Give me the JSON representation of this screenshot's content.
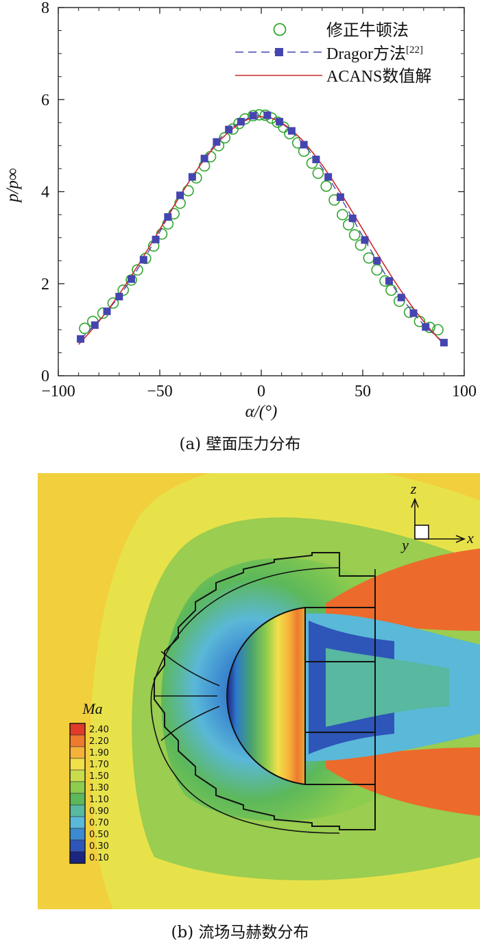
{
  "chart_data": [
    {
      "type": "line",
      "caption": "(a) 壁面压力分布",
      "xlabel": "α/(°)",
      "ylabel": "p/p∞",
      "xlim": [
        -100,
        100
      ],
      "ylim": [
        0,
        8
      ],
      "x_ticks": [
        -100,
        -50,
        0,
        50,
        100
      ],
      "y_ticks": [
        0,
        2,
        4,
        6,
        8
      ],
      "x_tick_labels": [
        "−100",
        "−50",
        "0",
        "50",
        "100"
      ],
      "y_tick_labels": [
        "0",
        "2",
        "4",
        "6",
        "8"
      ],
      "grid": false,
      "legend_position": "top-right",
      "series": [
        {
          "name": "修正牛顿法",
          "style": "open-circle",
          "color": "#2ea52e",
          "x": [
            -87,
            -83,
            -78,
            -73,
            -68,
            -64,
            -61,
            -57,
            -53,
            -49,
            -46,
            -43,
            -40,
            -36,
            -32,
            -28,
            -25,
            -21,
            -18,
            -14,
            -11,
            -8,
            -4,
            -1,
            2,
            5,
            8,
            11,
            14,
            18,
            21,
            25,
            28,
            32,
            36,
            40,
            43,
            46,
            49,
            53,
            57,
            61,
            64,
            68,
            73,
            78,
            83,
            87
          ],
          "y": [
            1.03,
            1.18,
            1.36,
            1.58,
            1.86,
            2.08,
            2.3,
            2.55,
            2.82,
            3.08,
            3.3,
            3.52,
            3.75,
            4.02,
            4.3,
            4.56,
            4.76,
            5.0,
            5.17,
            5.36,
            5.48,
            5.58,
            5.65,
            5.67,
            5.66,
            5.6,
            5.51,
            5.4,
            5.26,
            5.06,
            4.88,
            4.62,
            4.4,
            4.12,
            3.82,
            3.5,
            3.28,
            3.06,
            2.84,
            2.56,
            2.3,
            2.06,
            1.86,
            1.62,
            1.38,
            1.18,
            1.05,
            1.0
          ]
        },
        {
          "name": "Dragor方法",
          "name_superscript": "[22]",
          "style": "dashed-square",
          "color": "#4545b0",
          "x": [
            -89,
            -82,
            -76,
            -70,
            -64,
            -58,
            -52,
            -46,
            -40,
            -34,
            -28,
            -22,
            -16,
            -10,
            -4,
            3,
            9,
            15,
            21,
            27,
            33,
            39,
            45,
            51,
            57,
            63,
            69,
            75,
            81,
            90
          ],
          "y": [
            0.8,
            1.1,
            1.4,
            1.72,
            2.1,
            2.52,
            2.96,
            3.45,
            3.92,
            4.32,
            4.72,
            5.08,
            5.35,
            5.52,
            5.65,
            5.66,
            5.52,
            5.32,
            5.02,
            4.7,
            4.32,
            3.88,
            3.42,
            2.95,
            2.5,
            2.06,
            1.7,
            1.36,
            1.06,
            0.72
          ]
        },
        {
          "name": "ACANS数值解",
          "style": "solid",
          "color": "#cc2a2a",
          "x": [
            -90,
            -85,
            -80,
            -75,
            -70,
            -65,
            -60,
            -55,
            -50,
            -45,
            -40,
            -35,
            -30,
            -25,
            -20,
            -15,
            -10,
            -5,
            0,
            5,
            10,
            15,
            20,
            25,
            30,
            35,
            40,
            45,
            50,
            55,
            60,
            65,
            70,
            75,
            80,
            85,
            90
          ],
          "y": [
            0.68,
            0.92,
            1.18,
            1.46,
            1.77,
            2.1,
            2.45,
            2.81,
            3.18,
            3.55,
            3.91,
            4.26,
            4.58,
            4.87,
            5.13,
            5.34,
            5.5,
            5.6,
            5.63,
            5.6,
            5.5,
            5.34,
            5.13,
            4.87,
            4.58,
            4.26,
            3.91,
            3.55,
            3.18,
            2.81,
            2.45,
            2.1,
            1.77,
            1.46,
            1.18,
            0.92,
            0.68
          ]
        }
      ]
    },
    {
      "type": "heatmap",
      "caption": "(b) 流场马赫数分布",
      "colorbar_title": "Ma",
      "colorbar_levels": [
        "2.40",
        "2.20",
        "1.90",
        "1.70",
        "1.50",
        "1.30",
        "1.10",
        "0.90",
        "0.70",
        "0.50",
        "0.30",
        "0.10"
      ],
      "colorbar_colors": [
        "#e03a28",
        "#ee7a2e",
        "#f5b13a",
        "#f0e04a",
        "#c8dc4c",
        "#8ccc4e",
        "#5cb85a",
        "#58b8a0",
        "#5ab8d8",
        "#3c8ad0",
        "#2e55b8",
        "#1c2580"
      ],
      "axis_labels": {
        "z": "z",
        "y": "y",
        "x": "x"
      }
    }
  ],
  "captions": {
    "a": "(a) 壁面压力分布",
    "b": "(b) 流场马赫数分布"
  }
}
